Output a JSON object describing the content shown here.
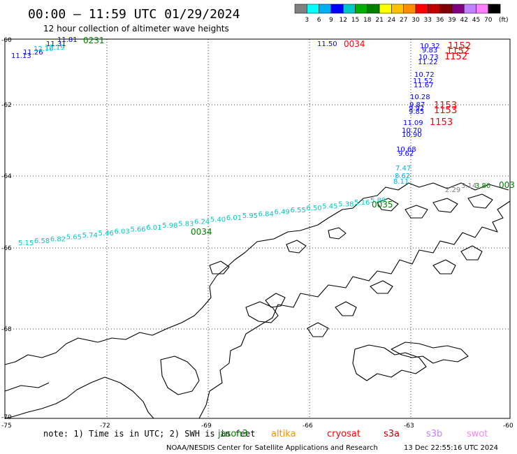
{
  "header": {
    "title": "00:00 – 11:59 UTC 01/29/2024",
    "subtitle": "12 hour collection of altimeter wave heights"
  },
  "legend": {
    "colors": [
      "#808080",
      "#00ffff",
      "#00b0f0",
      "#0000ff",
      "#00c8c8",
      "#00b000",
      "#008000",
      "#ffff00",
      "#ffc000",
      "#ff8c00",
      "#ff0000",
      "#c00000",
      "#800000",
      "#800080",
      "#c080ff",
      "#ff80ff",
      "#000000"
    ],
    "ticks": [
      "3",
      "6",
      "9",
      "12",
      "15",
      "18",
      "21",
      "24",
      "27",
      "30",
      "33",
      "36",
      "39",
      "42",
      "45",
      "70"
    ],
    "unit": "(ft)"
  },
  "axes": {
    "lat_labels": [
      "-60",
      "-62",
      "-64",
      "-66",
      "-68",
      "-70"
    ],
    "lon_labels": [
      "-75",
      "-72",
      "-69",
      "-66",
      "-63",
      "-60"
    ]
  },
  "footer": {
    "note": "note:  1) Time is in UTC; 2) SWH is in feet",
    "satellites": [
      {
        "name": "jason3",
        "color": "#008000"
      },
      {
        "name": "altika",
        "color": "#ff8c00"
      },
      {
        "name": "cryosat",
        "color": "#ff0000"
      },
      {
        "name": "s3a",
        "color": "#c00000"
      },
      {
        "name": "s3b",
        "color": "#c080ff"
      },
      {
        "name": "swot",
        "color": "#ff80ff"
      }
    ],
    "credit": "NOAA/NESDIS Center for Satellite Applications and Research",
    "timestamp": "13 Dec 22:55:16 UTC 2024"
  },
  "map_labels": {
    "track_times": [
      {
        "text": "0231",
        "color": "#008000"
      },
      {
        "text": "0034",
        "color": "#ff0000"
      },
      {
        "text": "1152",
        "color": "#ff0000"
      },
      {
        "text": "1152",
        "color": "#ff0000"
      },
      {
        "text": "1152",
        "color": "#ff0000"
      },
      {
        "text": "1153",
        "color": "#ff0000"
      },
      {
        "text": "1153",
        "color": "#ff0000"
      },
      {
        "text": "1153",
        "color": "#ff0000"
      },
      {
        "text": "0035",
        "color": "#008000"
      },
      {
        "text": "0034",
        "color": "#008000"
      },
      {
        "text": "003",
        "color": "#008000"
      }
    ],
    "nw_track": [
      {
        "text": "11.13",
        "color": "#0000ff"
      },
      {
        "text": "11.26",
        "color": "#0000ff"
      },
      {
        "text": "12.10",
        "color": "#00c8c8"
      },
      {
        "text": "12.19",
        "color": "#00c8c8"
      },
      {
        "text": "11.31",
        "color": "#0000ff"
      },
      {
        "text": "11.81",
        "color": "#0000ff"
      }
    ],
    "top_track": [
      {
        "text": "11.50",
        "color": "#0000ff"
      }
    ],
    "east_track": [
      {
        "text": "10.32",
        "color": "#0000ff"
      },
      {
        "text": "9.83",
        "color": "#0000ff"
      },
      {
        "text": "10.73",
        "color": "#0000ff"
      },
      {
        "text": "11.22",
        "color": "#0000ff"
      },
      {
        "text": "10.72",
        "color": "#0000ff"
      },
      {
        "text": "11.52",
        "color": "#0000ff"
      },
      {
        "text": "11.67",
        "color": "#0000ff"
      },
      {
        "text": "10.28",
        "color": "#0000ff"
      },
      {
        "text": "9.87",
        "color": "#0000ff"
      },
      {
        "text": "9.92",
        "color": "#0000ff"
      },
      {
        "text": "9.85",
        "color": "#0000ff"
      },
      {
        "text": "11.09",
        "color": "#0000ff"
      },
      {
        "text": "10.70",
        "color": "#0000ff"
      },
      {
        "text": "10.90",
        "color": "#0000ff"
      },
      {
        "text": "10.68",
        "color": "#0000ff"
      },
      {
        "text": "9.62",
        "color": "#0000ff"
      },
      {
        "text": "7.47",
        "color": "#00b0f0"
      },
      {
        "text": "8.62",
        "color": "#00b0f0"
      },
      {
        "text": "8.11",
        "color": "#00b0f0"
      }
    ],
    "diag_track": [
      {
        "text": "5.15",
        "color": "#00c8c8"
      },
      {
        "text": "6.58",
        "color": "#00c8c8"
      },
      {
        "text": "6.82",
        "color": "#00c8c8"
      },
      {
        "text": "5.65",
        "color": "#00c8c8"
      },
      {
        "text": "5.74",
        "color": "#00c8c8"
      },
      {
        "text": "5.46",
        "color": "#00c8c8"
      },
      {
        "text": "6.03",
        "color": "#00c8c8"
      },
      {
        "text": "5.66",
        "color": "#00c8c8"
      },
      {
        "text": "6.01",
        "color": "#00c8c8"
      },
      {
        "text": "5.98",
        "color": "#00c8c8"
      },
      {
        "text": "5.83",
        "color": "#00c8c8"
      },
      {
        "text": "6.24",
        "color": "#00c8c8"
      },
      {
        "text": "5.40",
        "color": "#00c8c8"
      },
      {
        "text": "6.01",
        "color": "#00c8c8"
      },
      {
        "text": "5.95",
        "color": "#00c8c8"
      },
      {
        "text": "6.84",
        "color": "#00c8c8"
      },
      {
        "text": "6.49",
        "color": "#00c8c8"
      },
      {
        "text": "6.55",
        "color": "#00c8c8"
      },
      {
        "text": "6.50",
        "color": "#00c8c8"
      },
      {
        "text": "5.45",
        "color": "#00c8c8"
      },
      {
        "text": "5.38",
        "color": "#00c8c8"
      },
      {
        "text": "5.16",
        "color": "#00c8c8"
      },
      {
        "text": "5.89",
        "color": "#00c8c8"
      }
    ],
    "se_track": [
      {
        "text": "2.29",
        "color": "#808080"
      },
      {
        "text": "3.14",
        "color": "#808080"
      },
      {
        "text": "3.80",
        "color": "#008000"
      }
    ]
  }
}
